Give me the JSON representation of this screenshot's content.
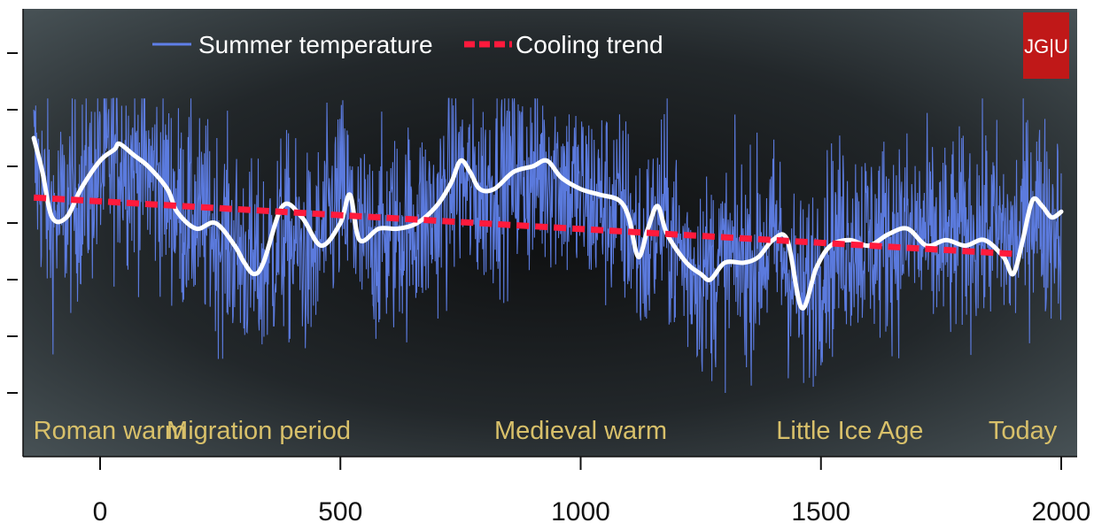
{
  "chart_data": {
    "type": "line",
    "title": "",
    "xlabel": "",
    "ylabel": "",
    "xlim": [
      -140,
      2005
    ],
    "ylim": [
      -4,
      4
    ],
    "x_ticks": [
      0,
      500,
      1000,
      1500,
      2000
    ],
    "x_tick_labels": [
      "0",
      "500",
      "1000",
      "1500",
      "2000"
    ],
    "y_tick_count": 7,
    "y_tick_labels_shown": false,
    "grid": false,
    "legend_position": "top-left",
    "background": "dark radial gradient",
    "series": [
      {
        "name": "Summer temperature",
        "style": "thin line (annual)",
        "color": "#5f7fe8",
        "note": "annual series, smoothed anchors below",
        "x": [
          -138,
          -100,
          -50,
          0,
          40,
          80,
          120,
          170,
          220,
          280,
          330,
          380,
          440,
          500,
          550,
          600,
          650,
          700,
          740,
          780,
          820,
          860,
          900,
          940,
          980,
          1020,
          1060,
          1100,
          1130,
          1170,
          1210,
          1260,
          1310,
          1360,
          1410,
          1460,
          1510,
          1560,
          1610,
          1660,
          1710,
          1760,
          1810,
          1860,
          1900,
          1940,
          1970,
          2000
        ],
        "values": [
          1.1,
          0.0,
          0.4,
          0.9,
          1.2,
          1.0,
          0.8,
          0.2,
          0.0,
          -0.4,
          -0.9,
          -0.2,
          -0.7,
          0.5,
          -0.4,
          -0.2,
          0.0,
          0.1,
          0.9,
          0.5,
          0.7,
          0.9,
          0.8,
          1.0,
          0.6,
          0.4,
          0.3,
          0.1,
          -0.6,
          0.2,
          -0.6,
          -0.9,
          -0.7,
          -0.6,
          -0.3,
          -1.4,
          -0.5,
          -0.2,
          -0.3,
          -0.2,
          -0.2,
          -0.4,
          -0.1,
          -0.1,
          -0.4,
          0.4,
          0.0,
          0.1
        ]
      },
      {
        "name": "",
        "style": "thick white smoothed line",
        "color": "#ffffff",
        "x": [
          -138,
          -120,
          -100,
          -70,
          -40,
          0,
          30,
          40,
          70,
          100,
          140,
          160,
          200,
          240,
          280,
          300,
          320,
          340,
          380,
          420,
          460,
          500,
          520,
          540,
          580,
          620,
          660,
          700,
          730,
          750,
          770,
          790,
          820,
          860,
          900,
          930,
          960,
          1000,
          1040,
          1080,
          1100,
          1120,
          1140,
          1160,
          1180,
          1220,
          1250,
          1270,
          1300,
          1340,
          1370,
          1400,
          1430,
          1460,
          1490,
          1520,
          1560,
          1600,
          1640,
          1680,
          1720,
          1760,
          1800,
          1840,
          1880,
          1900,
          1920,
          1940,
          1960,
          1980,
          2000
        ],
        "values": [
          1.5,
          0.9,
          0.1,
          0.1,
          0.6,
          1.1,
          1.3,
          1.4,
          1.2,
          1.0,
          0.6,
          0.2,
          -0.1,
          0.0,
          -0.4,
          -0.7,
          -0.9,
          -0.7,
          0.3,
          0.1,
          -0.4,
          0.0,
          0.5,
          -0.3,
          -0.1,
          -0.1,
          0.0,
          0.3,
          0.7,
          1.1,
          0.9,
          0.6,
          0.6,
          0.9,
          1.0,
          1.1,
          0.8,
          0.6,
          0.5,
          0.4,
          0.1,
          -0.6,
          -0.1,
          0.3,
          -0.2,
          -0.7,
          -0.9,
          -1.0,
          -0.7,
          -0.7,
          -0.6,
          -0.3,
          -0.3,
          -1.5,
          -0.8,
          -0.4,
          -0.3,
          -0.4,
          -0.2,
          -0.1,
          -0.4,
          -0.3,
          -0.4,
          -0.3,
          -0.6,
          -0.9,
          -0.3,
          0.4,
          0.3,
          0.1,
          0.2
        ]
      },
      {
        "name": "Cooling trend",
        "style": "red dashed line",
        "color": "#ff1a3c",
        "x": [
          -138,
          1910
        ],
        "values": [
          0.45,
          -0.55
        ]
      }
    ],
    "period_labels": [
      {
        "x": 20,
        "text": "Roman warm"
      },
      {
        "x": 330,
        "text": "Migration period"
      },
      {
        "x": 1000,
        "text": "Medieval warm"
      },
      {
        "x": 1560,
        "text": "Little Ice Age"
      },
      {
        "x": 1920,
        "text": "Today"
      }
    ],
    "logo": "JG|U",
    "colors": {
      "background_center": "#0e0f10",
      "background_edge": "#4b5659",
      "temperature": "#5f7fe8",
      "smooth": "#ffffff",
      "trend": "#ff1a3c",
      "period_text": "#d8c06a",
      "logo_bg": "#c01818"
    }
  }
}
